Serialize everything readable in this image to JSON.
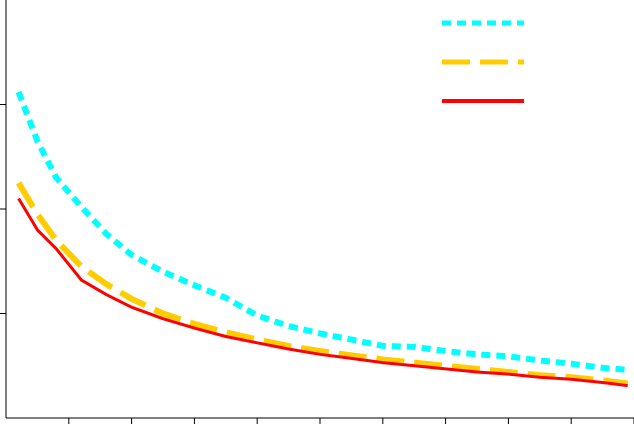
{
  "chart_data": {
    "type": "line",
    "title": "",
    "xlabel": "",
    "ylabel": "",
    "xlim": [
      0,
      10
    ],
    "ylim": [
      0,
      4
    ],
    "grid": false,
    "legend_position": "top-right",
    "x": [
      0.2,
      0.5,
      0.8,
      1.2,
      1.6,
      2.0,
      2.5,
      3.0,
      3.5,
      4.0,
      4.5,
      5.0,
      5.5,
      6.0,
      6.5,
      7.0,
      7.5,
      8.0,
      8.5,
      9.0,
      9.5,
      9.9
    ],
    "series": [
      {
        "style": "dotted",
        "color": "#00FFFF",
        "values": [
          3.12,
          2.65,
          2.3,
          2.02,
          1.76,
          1.56,
          1.4,
          1.27,
          1.15,
          0.98,
          0.88,
          0.81,
          0.75,
          0.69,
          0.68,
          0.64,
          0.61,
          0.59,
          0.55,
          0.52,
          0.48,
          0.46
        ]
      },
      {
        "style": "dashed",
        "color": "#FFCC00",
        "values": [
          2.25,
          1.95,
          1.7,
          1.45,
          1.28,
          1.14,
          1.0,
          0.9,
          0.82,
          0.75,
          0.69,
          0.64,
          0.6,
          0.56,
          0.53,
          0.5,
          0.47,
          0.44,
          0.41,
          0.39,
          0.36,
          0.33
        ]
      },
      {
        "style": "solid",
        "color": "#FF0000",
        "values": [
          2.1,
          1.8,
          1.62,
          1.32,
          1.18,
          1.06,
          0.95,
          0.86,
          0.78,
          0.72,
          0.66,
          0.61,
          0.57,
          0.53,
          0.5,
          0.47,
          0.44,
          0.42,
          0.39,
          0.37,
          0.34,
          0.31
        ]
      }
    ]
  }
}
